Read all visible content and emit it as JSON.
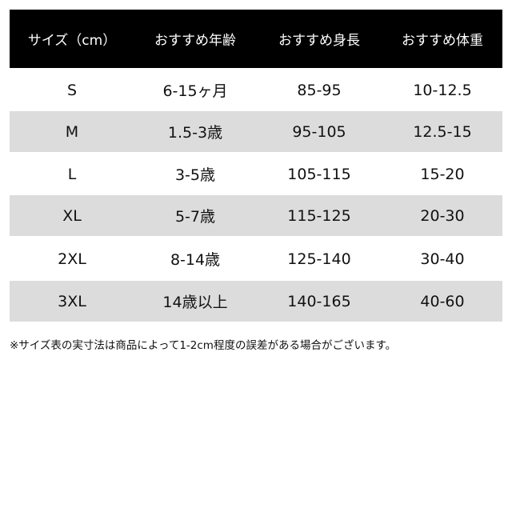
{
  "table": {
    "header": [
      "サイズ（cm）",
      "おすすめ年齢",
      "おすすめ身長",
      "おすすめ体重"
    ],
    "rows": [
      [
        "S",
        "6-15ヶ月",
        "85-95",
        "10-12.5"
      ],
      [
        "M",
        "1.5-3歳",
        "95-105",
        "12.5-15"
      ],
      [
        "L",
        "3-5歳",
        "105-115",
        "15-20"
      ],
      [
        "XL",
        "5-7歳",
        "115-125",
        "20-30"
      ],
      [
        "2XL",
        "8-14歳",
        "125-140",
        "30-40"
      ],
      [
        "3XL",
        "14歳以上",
        "140-165",
        "40-60"
      ]
    ]
  },
  "note": "※サイズ表の実寸法は商品によって1-2cm程度の誤差がある場合がございます。"
}
